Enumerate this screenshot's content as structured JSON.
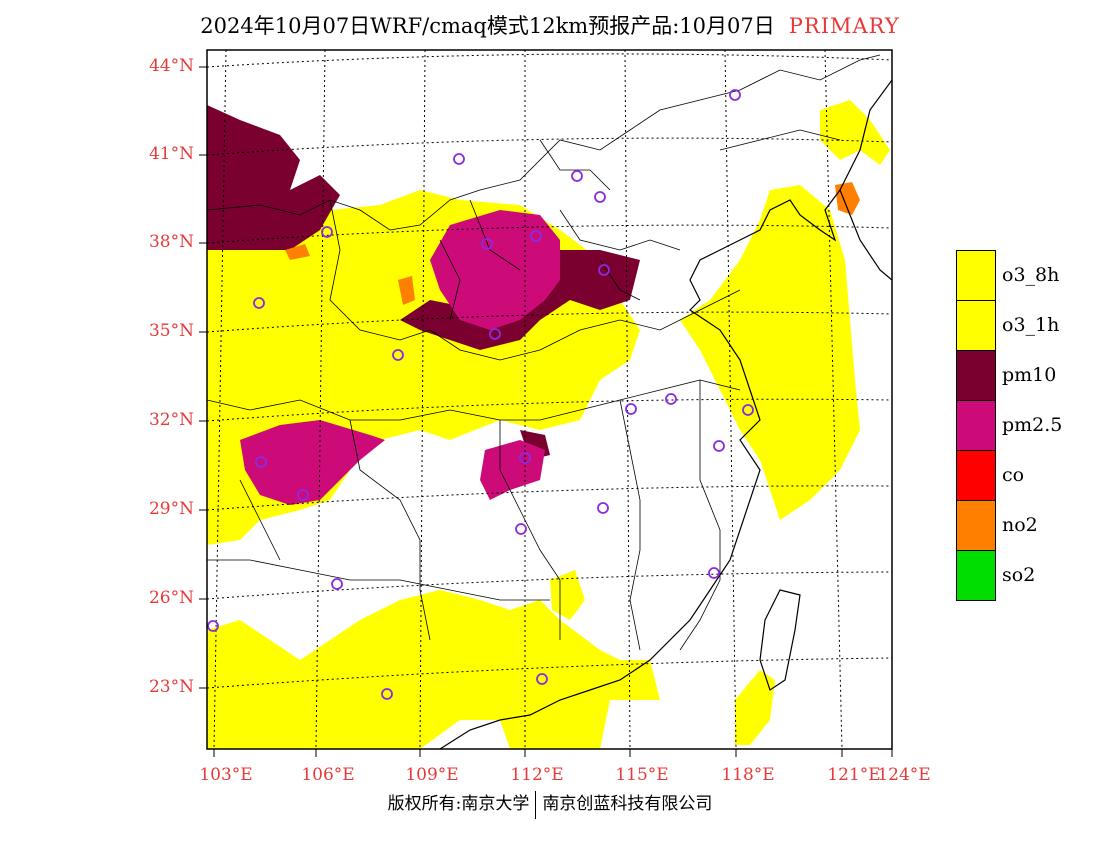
{
  "header": {
    "title": "2024年10月07日WRF/cmaq模式12km预报产品:10月07日",
    "tag": "PRIMARY"
  },
  "map": {
    "lat_labels": [
      "44°N",
      "41°N",
      "38°N",
      "35°N",
      "32°N",
      "29°N",
      "26°N",
      "23°N"
    ],
    "lon_labels": [
      "103°E",
      "106°E",
      "109°E",
      "112°E",
      "115°E",
      "118°E",
      "121°E",
      "124°E"
    ]
  },
  "legend": {
    "items": [
      {
        "label": "o3_8h",
        "color": "#ffff00"
      },
      {
        "label": "o3_1h",
        "color": "#ffff00"
      },
      {
        "label": "pm10",
        "color": "#7a0030"
      },
      {
        "label": "pm2.5",
        "color": "#cc0a78"
      },
      {
        "label": "co",
        "color": "#ff0000"
      },
      {
        "label": "no2",
        "color": "#ff7f00"
      },
      {
        "label": "so2",
        "color": "#00dd00"
      }
    ]
  },
  "colors": {
    "o3": "#ffff00",
    "pm10": "#7a0030",
    "pm25": "#cc0a78",
    "no2": "#ff7f00",
    "station_marker": "#8a2be2",
    "axis_label": "#e8393a"
  },
  "footer": {
    "left": "版权所有:南京大学",
    "right": "南京创蓝科技有限公司"
  }
}
